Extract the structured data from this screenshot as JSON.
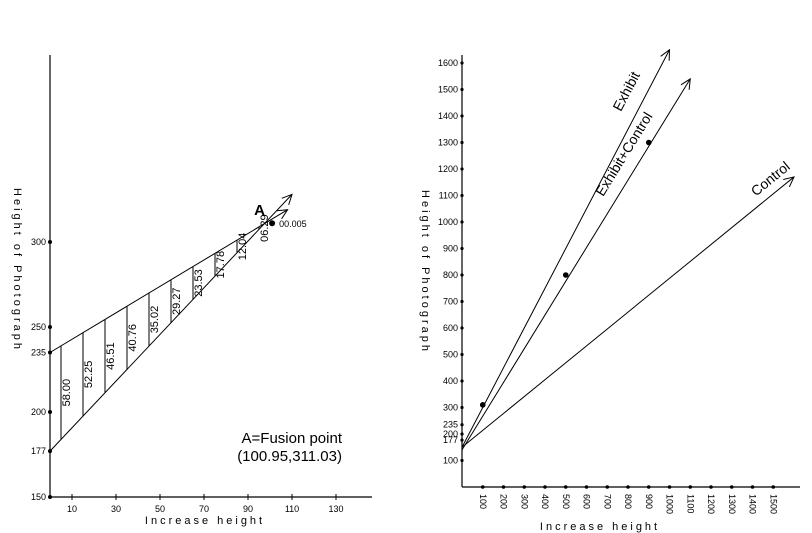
{
  "chart_data": [
    {
      "type": "line",
      "xlabel": "Increase height",
      "ylabel": "Height of Photograph",
      "x_ticks": [
        10,
        30,
        50,
        70,
        90,
        110,
        130
      ],
      "y_ticks": [
        150,
        177,
        200,
        235,
        250,
        300
      ],
      "xlim": [
        0,
        140
      ],
      "ylim": [
        150,
        325
      ],
      "lines": [
        {
          "x": [
            0,
            108
          ],
          "y": [
            235,
            319
          ]
        },
        {
          "x": [
            0,
            110
          ],
          "y": [
            177,
            328
          ]
        }
      ],
      "segments": [
        {
          "x": 5,
          "label": "58.00"
        },
        {
          "x": 15,
          "label": "52.25"
        },
        {
          "x": 25,
          "label": "46.51"
        },
        {
          "x": 35,
          "label": "40.76"
        },
        {
          "x": 45,
          "label": "35.02"
        },
        {
          "x": 55,
          "label": "29.27"
        },
        {
          "x": 65,
          "label": "23.53"
        },
        {
          "x": 75,
          "label": "17.78"
        },
        {
          "x": 85,
          "label": "12.04"
        },
        {
          "x": 95,
          "label": "06.29"
        },
        {
          "x": 101,
          "label": "00.005"
        }
      ],
      "point": {
        "name": "A",
        "x": 100.95,
        "y": 311.03
      },
      "annotation": [
        "A=Fusion point",
        "(100.95,311.03)"
      ]
    },
    {
      "type": "line",
      "xlabel": "Increase height",
      "ylabel": "Height of Photograph",
      "x_ticks": [
        "100",
        "200",
        "300",
        "400",
        "500",
        "600",
        "700",
        "800",
        "900",
        "1000",
        "1100",
        "1200",
        "1300",
        "1400",
        "1500"
      ],
      "y_ticks": [
        "100",
        "177",
        "200",
        "235",
        "300",
        "400",
        "500",
        "600",
        "700",
        "800",
        "900",
        "1000",
        "1100",
        "1200",
        "1300",
        "1400",
        "1500",
        "1600"
      ],
      "series": [
        {
          "name": "Exhibit",
          "x": [
            0,
            1000
          ],
          "y": [
            150,
            1650
          ]
        },
        {
          "name": "Exhibit+Control",
          "x": [
            0,
            1100
          ],
          "y": [
            140,
            1540
          ]
        },
        {
          "name": "Control",
          "x": [
            0,
            1600
          ],
          "y": [
            150,
            1170
          ]
        }
      ],
      "points": [
        {
          "x": 100,
          "y": 310
        },
        {
          "x": 500,
          "y": 800
        },
        {
          "x": 900,
          "y": 1300
        }
      ]
    }
  ]
}
